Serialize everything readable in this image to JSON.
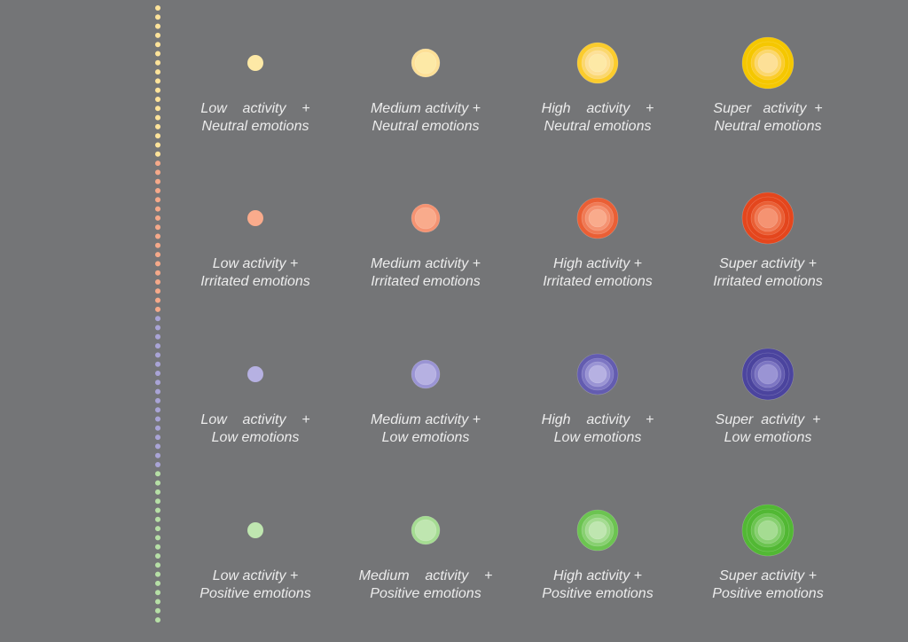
{
  "legend_dots": [
    {
      "emotion": "neutral",
      "color": "#fde39a",
      "count": 17
    },
    {
      "emotion": "irritated",
      "color": "#f5a98a",
      "count": 17
    },
    {
      "emotion": "low",
      "color": "#a9a4d6",
      "count": 17
    },
    {
      "emotion": "positive",
      "color": "#b6dfa6",
      "count": 17
    }
  ],
  "rows": [
    {
      "emotion": "neutral",
      "colors": [
        "#fcd5c0",
        "#fde9a6",
        "#fde097",
        "#fbd76e",
        "#fbcc2d",
        "#f5c700"
      ],
      "cells": [
        {
          "level": 1,
          "line1": "Low    activity    +",
          "line2": "Neutral emotions"
        },
        {
          "level": 2,
          "line1": "Medium activity +",
          "line2": "Neutral emotions"
        },
        {
          "level": 3,
          "line1": "High    activity    +",
          "line2": "Neutral emotions"
        },
        {
          "level": 4,
          "line1": "Super   activity  +",
          "line2": "Neutral emotions"
        }
      ]
    },
    {
      "emotion": "irritated",
      "colors": [
        "#fcc0a5",
        "#f9ab8c",
        "#f59372",
        "#f07a55",
        "#ea5f35",
        "#e4461d"
      ],
      "cells": [
        {
          "level": 1,
          "line1": "Low activity +",
          "line2": "Irritated emotions"
        },
        {
          "level": 2,
          "line1": "Medium activity +",
          "line2": "Irritated emotions"
        },
        {
          "level": 3,
          "line1": "High activity +",
          "line2": "Irritated emotions"
        },
        {
          "level": 4,
          "line1": "Super activity +",
          "line2": "Irritated emotions"
        }
      ]
    },
    {
      "emotion": "low",
      "colors": [
        "#d3d0ef",
        "#b6b1e2",
        "#9a94d4",
        "#7d76c3",
        "#635cb0",
        "#4b449e"
      ],
      "cells": [
        {
          "level": 1,
          "line1": "Low    activity    +",
          "line2": "Low emotions"
        },
        {
          "level": 2,
          "line1": "Medium activity +",
          "line2": "Low emotions"
        },
        {
          "level": 3,
          "line1": "High    activity    +",
          "line2": "Low emotions"
        },
        {
          "level": 4,
          "line1": "Super  activity  +",
          "line2": "Low emotions"
        }
      ]
    },
    {
      "emotion": "positive",
      "colors": [
        "#d9f0cf",
        "#bfe6b0",
        "#a5dc92",
        "#88d071",
        "#6cc451",
        "#52b834"
      ],
      "cells": [
        {
          "level": 1,
          "line1": "Low activity +",
          "line2": "Positive emotions"
        },
        {
          "level": 2,
          "line1": "Medium    activity    +",
          "line2": "Positive emotions"
        },
        {
          "level": 3,
          "line1": "High activity +",
          "line2": "Positive emotions"
        },
        {
          "level": 4,
          "line1": "Super activity +",
          "line2": "Positive emotions"
        }
      ]
    }
  ]
}
